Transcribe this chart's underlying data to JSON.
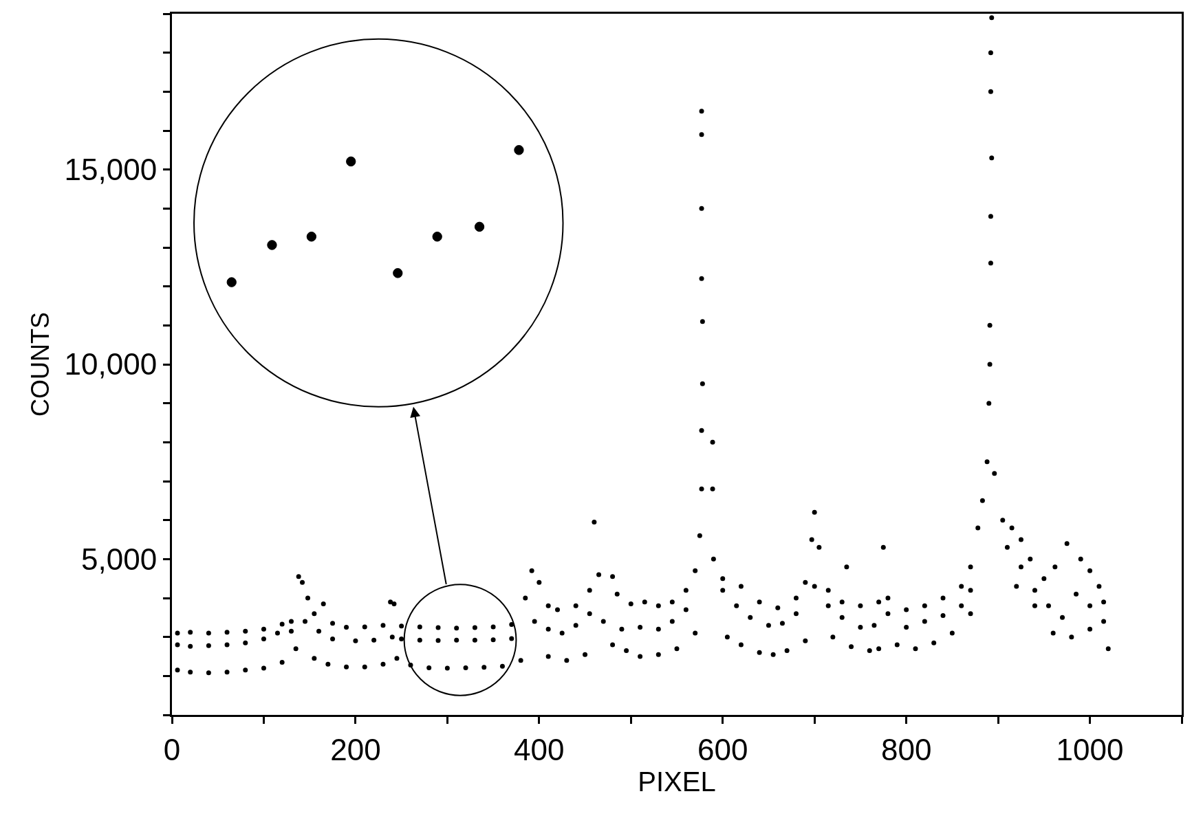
{
  "chart_data": {
    "type": "scatter",
    "xlabel": "PIXEL",
    "ylabel": "COUNTS",
    "xlim": [
      0,
      1100
    ],
    "xticks": [
      0,
      {
        "value": 100,
        "label": null
      },
      200,
      {
        "value": 300,
        "label": null
      },
      400,
      {
        "value": 500,
        "label": null
      },
      600,
      {
        "value": 700,
        "label": null
      },
      800,
      {
        "value": 900,
        "label": null
      },
      1000,
      {
        "value": 1100,
        "label": null
      }
    ],
    "ylim": [
      1000,
      19000
    ],
    "yticks": [
      {
        "value": 1000,
        "label": null
      },
      {
        "value": 2000,
        "label": null
      },
      {
        "value": 3000,
        "label": null
      },
      {
        "value": 4000,
        "label": null
      },
      {
        "value": 5000,
        "label": "5,000"
      },
      {
        "value": 6000,
        "label": null
      },
      {
        "value": 7000,
        "label": null
      },
      {
        "value": 8000,
        "label": null
      },
      {
        "value": 9000,
        "label": null
      },
      {
        "value": 10000,
        "label": "10,000"
      },
      {
        "value": 11000,
        "label": null
      },
      {
        "value": 12000,
        "label": null
      },
      {
        "value": 13000,
        "label": null
      },
      {
        "value": 14000,
        "label": null
      },
      {
        "value": 15000,
        "label": "15,000"
      },
      {
        "value": 16000,
        "label": null
      },
      {
        "value": 17000,
        "label": null
      },
      {
        "value": 18000,
        "label": null
      },
      {
        "value": 19000,
        "label": null
      }
    ],
    "marker": "circle",
    "series": [
      {
        "color": "#000000",
        "x": [
          6,
          20,
          40,
          60,
          80,
          100,
          120,
          130,
          138,
          142,
          148,
          155,
          165,
          175,
          190,
          210,
          230,
          238,
          242,
          250,
          270,
          290,
          310,
          330,
          350,
          370,
          385,
          392,
          400,
          410,
          420,
          440,
          455,
          460,
          465,
          480,
          485,
          500,
          515,
          530,
          545,
          560,
          570,
          575,
          577,
          577,
          578,
          578,
          577,
          577,
          577,
          577,
          589,
          589,
          590,
          600,
          620,
          640,
          660,
          680,
          690,
          697,
          700,
          705,
          715,
          730,
          735,
          750,
          770,
          775,
          780,
          800,
          820,
          840,
          860,
          870,
          878,
          883,
          888,
          890,
          891,
          891,
          892,
          892,
          893,
          892,
          892,
          893,
          896,
          905,
          915,
          925,
          935,
          950,
          962,
          975,
          990,
          1000,
          1010,
          1015
        ],
        "values": [
          3100,
          3120,
          3100,
          3120,
          3150,
          3200,
          3330,
          3400,
          4550,
          4400,
          4000,
          3600,
          3850,
          3350,
          3250,
          3260,
          3300,
          3900,
          3850,
          3280,
          3260,
          3240,
          3230,
          3240,
          3260,
          3320,
          4000,
          4700,
          4400,
          3800,
          3700,
          3800,
          4200,
          5950,
          4600,
          4550,
          4100,
          3850,
          3900,
          3800,
          3900,
          4200,
          4700,
          5600,
          6800,
          8300,
          9500,
          11100,
          12200,
          14000,
          15900,
          16500,
          8000,
          6800,
          5000,
          4500,
          4300,
          3900,
          3750,
          4000,
          4400,
          5500,
          6200,
          5300,
          4200,
          3900,
          4800,
          3800,
          3900,
          5300,
          4000,
          3700,
          3800,
          4000,
          4300,
          4800,
          5800,
          6500,
          7500,
          9000,
          10000,
          11000,
          12600,
          13800,
          15300,
          17000,
          18000,
          18900,
          7200,
          6000,
          5800,
          5500,
          5000,
          4500,
          4800,
          5400,
          5000,
          4700,
          4300,
          3900
        ]
      },
      {
        "color": "#000000",
        "x": [
          6,
          20,
          40,
          60,
          80,
          100,
          115,
          130,
          145,
          160,
          175,
          200,
          220,
          240,
          250,
          270,
          290,
          310,
          330,
          350,
          370,
          395,
          410,
          425,
          440,
          455,
          470,
          490,
          510,
          530,
          545,
          560,
          600,
          615,
          630,
          650,
          665,
          680,
          700,
          715,
          730,
          750,
          765,
          780,
          800,
          820,
          840,
          860,
          870,
          910,
          925,
          940,
          955,
          970,
          985,
          1000,
          1015
        ],
        "values": [
          2800,
          2760,
          2780,
          2800,
          2850,
          2950,
          3100,
          3150,
          3400,
          3150,
          2950,
          2900,
          2920,
          3000,
          2950,
          2920,
          2910,
          2920,
          2920,
          2930,
          2960,
          3400,
          3200,
          3100,
          3300,
          3600,
          3400,
          3200,
          3250,
          3200,
          3400,
          3700,
          4200,
          3800,
          3500,
          3300,
          3350,
          3600,
          4300,
          3800,
          3500,
          3250,
          3300,
          3600,
          3250,
          3400,
          3550,
          3800,
          4200,
          5300,
          4800,
          4200,
          3800,
          3500,
          4100,
          3800,
          3400
        ]
      },
      {
        "color": "#000000",
        "x": [
          6,
          20,
          40,
          60,
          80,
          100,
          120,
          135,
          155,
          170,
          190,
          210,
          230,
          245,
          260,
          280,
          300,
          320,
          340,
          360,
          380,
          410,
          430,
          450,
          480,
          495,
          510,
          530,
          550,
          570,
          605,
          620,
          640,
          655,
          670,
          690,
          720,
          740,
          760,
          770,
          790,
          810,
          830,
          850,
          870,
          920,
          940,
          960,
          980,
          1000,
          1020
        ],
        "values": [
          2150,
          2100,
          2080,
          2100,
          2150,
          2200,
          2350,
          2700,
          2450,
          2300,
          2230,
          2230,
          2300,
          2450,
          2280,
          2210,
          2200,
          2210,
          2220,
          2250,
          2400,
          2500,
          2400,
          2550,
          2800,
          2650,
          2500,
          2550,
          2700,
          3100,
          3000,
          2800,
          2600,
          2550,
          2650,
          2900,
          3000,
          2750,
          2650,
          2700,
          2800,
          2700,
          2850,
          3100,
          3600,
          4300,
          3800,
          3100,
          3000,
          3200,
          2700
        ]
      }
    ]
  }
}
